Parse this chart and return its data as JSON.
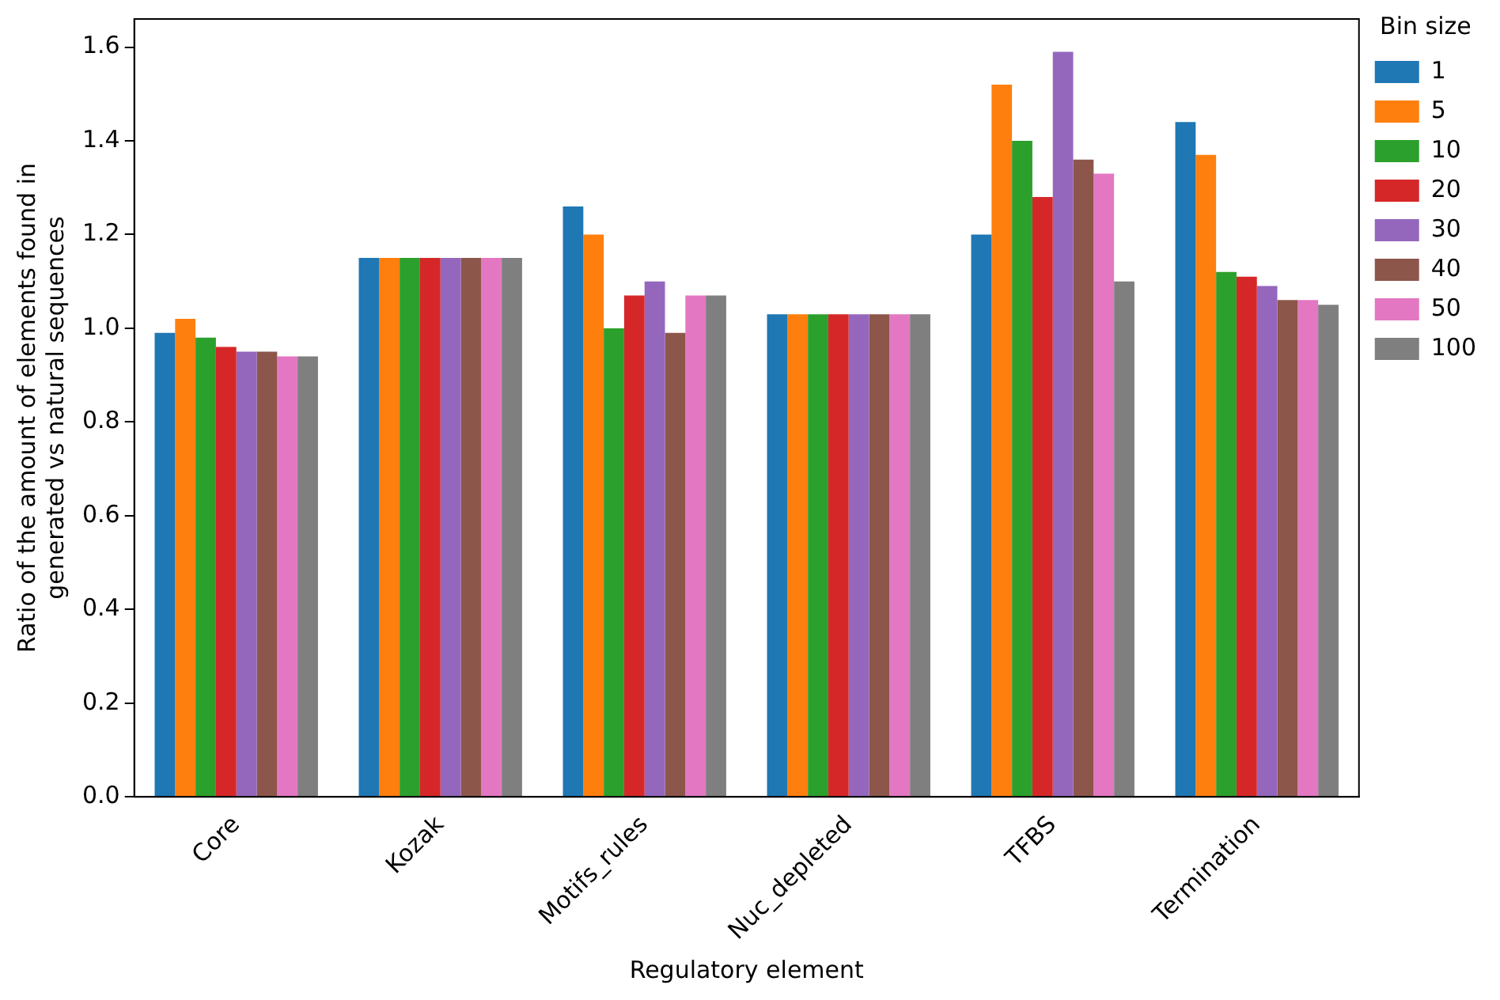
{
  "chart_data": {
    "type": "bar",
    "xlabel": "Regulatory element",
    "ylabel": "Ratio of the amount of elements found in\ngenerated vs natural sequences",
    "legend_title": "Bin size",
    "legend": "top right",
    "grid": false,
    "categories": [
      "Core",
      "Kozak",
      "Motifs_rules",
      "Nuc_depleted",
      "TFBS",
      "Termination"
    ],
    "ylim": [
      0,
      1.66
    ],
    "yticks": [
      {
        "value": 0,
        "label": "0.0"
      },
      {
        "value": 0.2,
        "label": "0.2"
      },
      {
        "value": 0.4,
        "label": "0.4"
      },
      {
        "value": 0.6,
        "label": "0.6"
      },
      {
        "value": 0.8,
        "label": "0.8"
      },
      {
        "value": 1,
        "label": "1.0"
      },
      {
        "value": 1.2,
        "label": "1.2"
      },
      {
        "value": 1.4,
        "label": "1.4"
      },
      {
        "value": 1.6,
        "label": "1.6"
      }
    ],
    "series": [
      {
        "name": "1",
        "color": "#1f77b4",
        "values": [
          0.99,
          1.15,
          1.26,
          1.03,
          1.2,
          1.44
        ]
      },
      {
        "name": "5",
        "color": "#ff7f0e",
        "values": [
          1.02,
          1.15,
          1.2,
          1.03,
          1.52,
          1.37
        ]
      },
      {
        "name": "10",
        "color": "#2ca02c",
        "values": [
          0.98,
          1.15,
          1.0,
          1.03,
          1.4,
          1.12
        ]
      },
      {
        "name": "20",
        "color": "#d62728",
        "values": [
          0.96,
          1.15,
          1.07,
          1.03,
          1.28,
          1.11
        ]
      },
      {
        "name": "30",
        "color": "#9467bd",
        "values": [
          0.95,
          1.15,
          1.1,
          1.03,
          1.59,
          1.09
        ]
      },
      {
        "name": "40",
        "color": "#8c564b",
        "values": [
          0.95,
          1.15,
          0.99,
          1.03,
          1.36,
          1.06
        ]
      },
      {
        "name": "50",
        "color": "#e377c2",
        "values": [
          0.94,
          1.15,
          1.07,
          1.03,
          1.33,
          1.06
        ]
      },
      {
        "name": "100",
        "color": "#7f7f7f",
        "values": [
          0.94,
          1.15,
          1.07,
          1.03,
          1.1,
          1.05
        ]
      }
    ]
  }
}
